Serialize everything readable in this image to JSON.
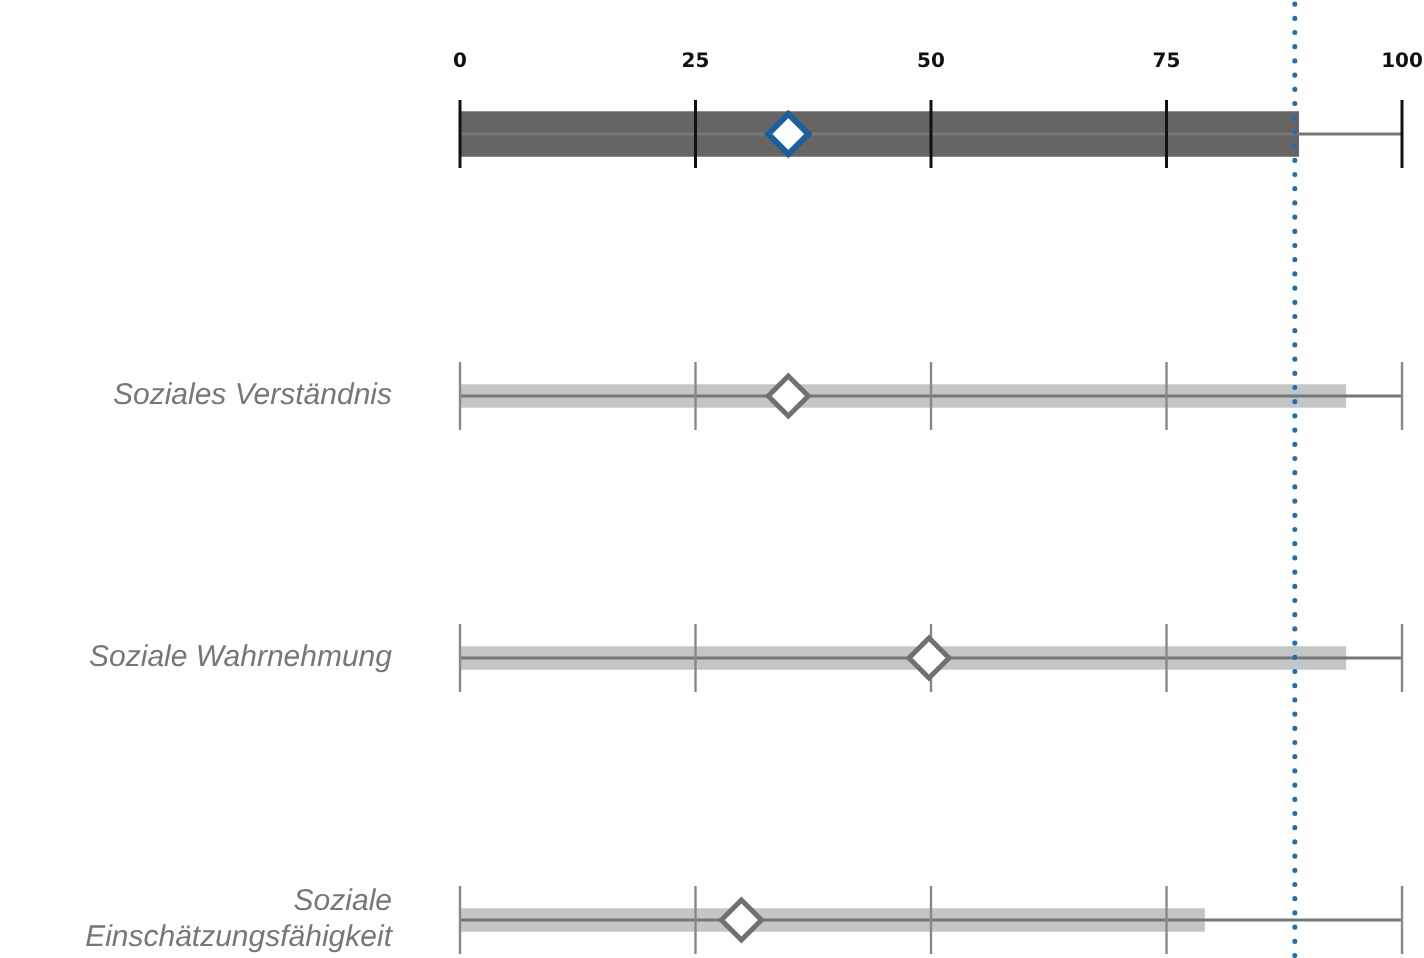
{
  "chart_data": {
    "type": "bar",
    "orientation": "horizontal",
    "categories": [
      null,
      "Soziales Verständnis",
      "Soziale Wahrnehmung",
      "Soziale Einschätzungsfähigkeit"
    ],
    "series": [
      {
        "colors": [
          "#666564",
          "#c4c6c6",
          "#c4c6c6",
          "#c4c6c6"
        ],
        "values": [
          89,
          94,
          94,
          79
        ]
      },
      {
        "type": "scatter",
        "colors": [
          "#1a5fa0",
          "#707070",
          "#707070",
          "#707070"
        ],
        "values": [
          35,
          35,
          50,
          30
        ]
      }
    ],
    "marker": "diamond",
    "xlim": [
      0,
      100
    ],
    "xticks": [
      0,
      25,
      50,
      75,
      100
    ],
    "ref_lines": [
      {
        "axis": "x",
        "value": 89,
        "color": "#1f6db5",
        "line_style": "dotted"
      }
    ]
  }
}
